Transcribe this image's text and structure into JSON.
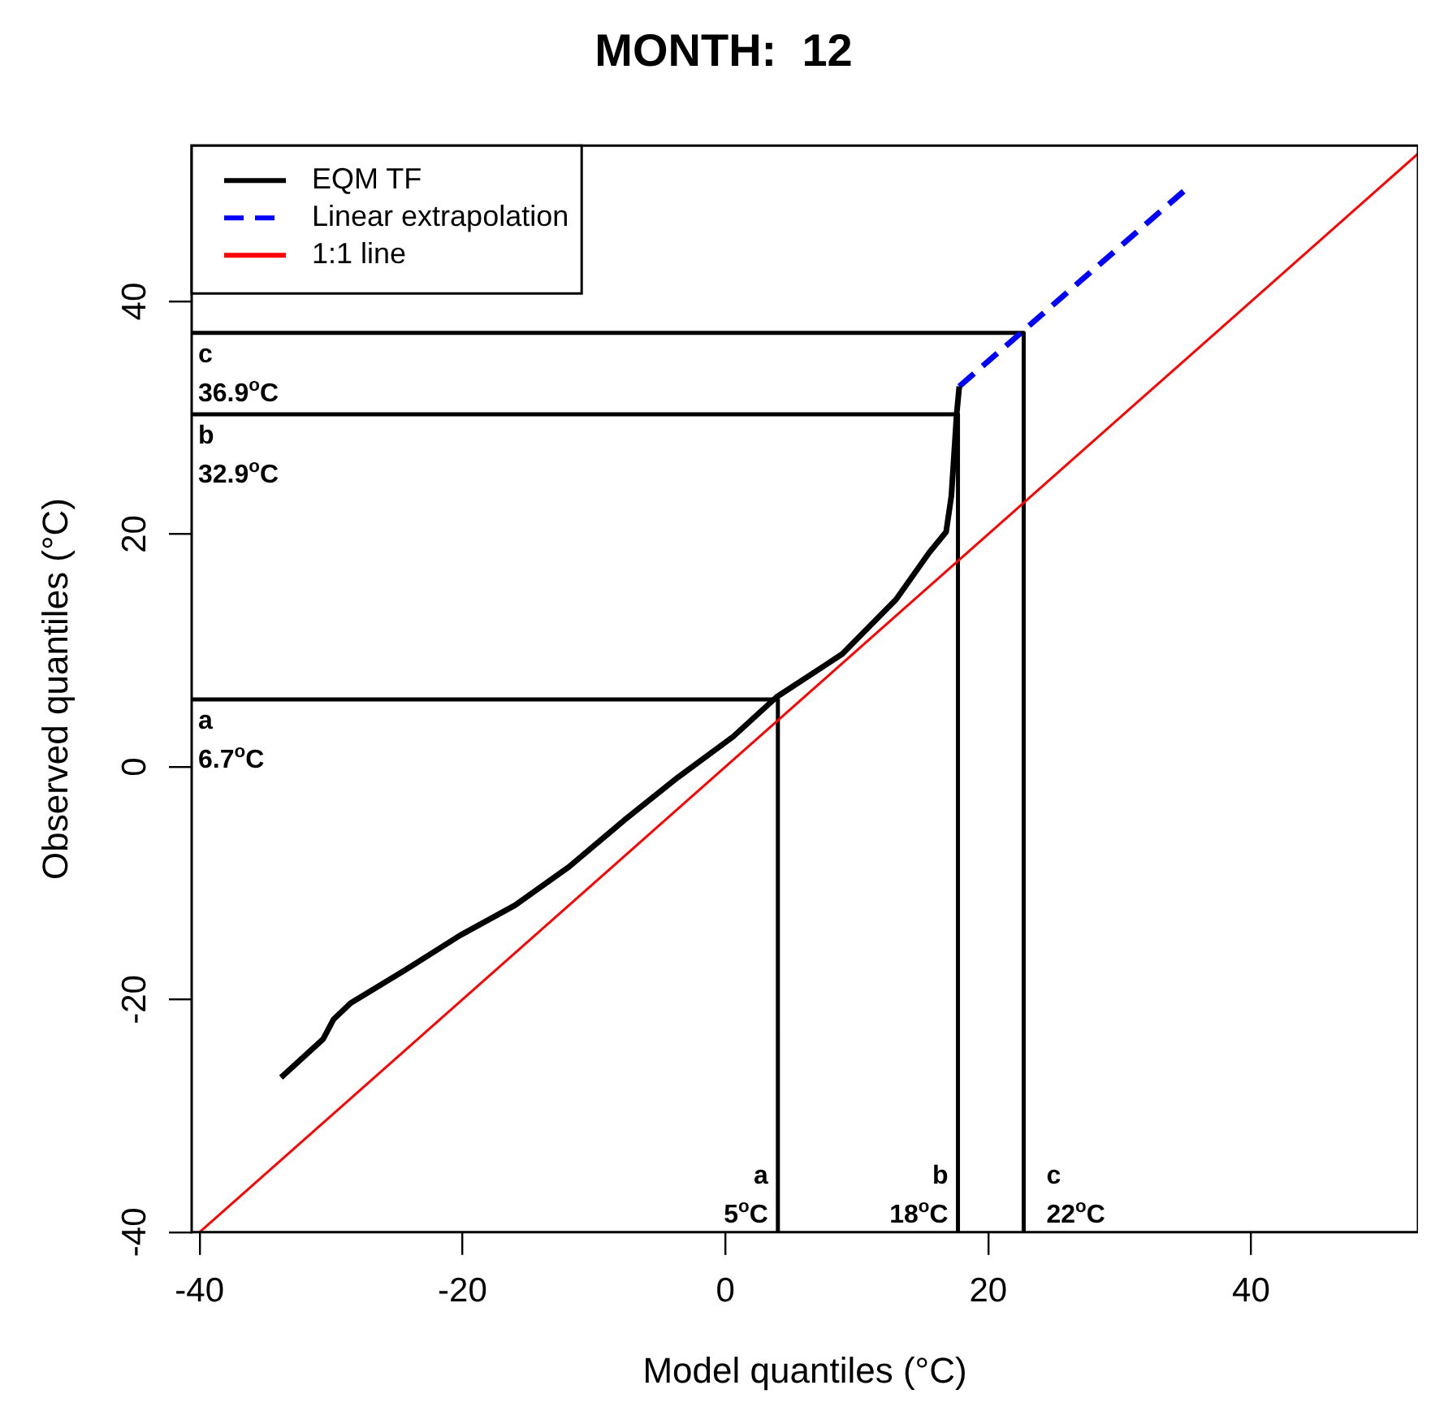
{
  "chart_data": {
    "type": "line",
    "title": "MONTH:  12",
    "xlabel": "Model quantiles (°C)",
    "ylabel": "Observed quantiles (°C)",
    "xlim": [
      -40.6,
      52.7
    ],
    "ylim": [
      -40,
      53.4
    ],
    "xticks": [
      -40,
      -20,
      0,
      20,
      40
    ],
    "yticks": [
      -40,
      -20,
      0,
      20,
      40
    ],
    "grid": false,
    "legend": "top left",
    "marker": "none",
    "series": [
      {
        "name": "EQM TF",
        "color": "#000000",
        "line_style": "solid",
        "x": [
          -33.8,
          -30.6,
          -29.8,
          -28.5,
          -24.4,
          -20.2,
          -16.0,
          -11.9,
          -7.7,
          -3.6,
          0.6,
          3.9,
          8.9,
          13.0,
          15.5,
          16.8,
          17.2,
          17.6,
          17.8
        ],
        "values": [
          -26.7,
          -23.4,
          -21.7,
          -20.3,
          -17.5,
          -14.5,
          -11.9,
          -8.6,
          -4.6,
          -0.9,
          2.6,
          6.0,
          9.7,
          14.4,
          18.4,
          20.2,
          23.3,
          30.3,
          32.7
        ]
      },
      {
        "name": "Linear extrapolation",
        "color": "#0000ff",
        "line_style": "dashed",
        "x": [
          17.8,
          35.1
        ],
        "values": [
          32.7,
          49.7
        ]
      },
      {
        "name": "1:1 line",
        "color": "#ff0000",
        "line_style": "solid",
        "x": [
          -40,
          52.7
        ],
        "values": [
          -40,
          52.7
        ]
      },
      {
        "color": "#000000",
        "line_style": "solid",
        "x": [
          -40.6,
          4.0,
          4.0
        ],
        "values": [
          5.8,
          5.8,
          -40
        ]
      },
      {
        "color": "#000000",
        "line_style": "solid",
        "x": [
          -40.6,
          17.7,
          17.7
        ],
        "values": [
          30.3,
          30.3,
          -40
        ]
      },
      {
        "color": "#000000",
        "line_style": "solid",
        "x": [
          -40.6,
          22.7,
          22.7
        ],
        "values": [
          37.3,
          37.3,
          -40
        ]
      }
    ],
    "annotations": [
      {
        "text": "a\n6.7$^{o}$C",
        "x": -40.6,
        "y": 5.8
      },
      {
        "text": "b\n32.9$^{o}$C",
        "x": -40.6,
        "y": 30.3
      },
      {
        "text": "c\n36.9$^{o}$C",
        "x": -40.6,
        "y": 37.3
      },
      {
        "text": "a\n5$^{o}$C",
        "x": 4.0,
        "y": -40
      },
      {
        "text": "b\n18$^{o}$C",
        "x": 17.7,
        "y": -40
      },
      {
        "text": "c\n22$^{o}$C",
        "x": 22.7,
        "y": -40
      }
    ]
  }
}
